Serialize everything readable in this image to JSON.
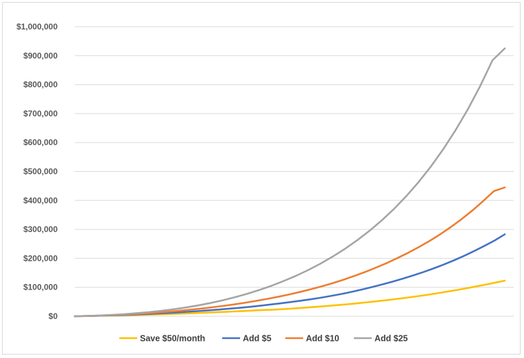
{
  "chart_data": {
    "type": "line",
    "title": "",
    "xlabel": "",
    "ylabel": "",
    "ylim": [
      0,
      1000000
    ],
    "yticks": [
      {
        "value": 0,
        "label": "$0"
      },
      {
        "value": 100000,
        "label": "$100,000"
      },
      {
        "value": 200000,
        "label": "$200,000"
      },
      {
        "value": 300000,
        "label": "$300,000"
      },
      {
        "value": 400000,
        "label": "$400,000"
      },
      {
        "value": 500000,
        "label": "$500,000"
      },
      {
        "value": 600000,
        "label": "$600,000"
      },
      {
        "value": 700000,
        "label": "$700,000"
      },
      {
        "value": 800000,
        "label": "$800,000"
      },
      {
        "value": 900000,
        "label": "$900,000"
      },
      {
        "value": 1000000,
        "label": "$1,000,000"
      }
    ],
    "grid": true,
    "legend_position": "bottom",
    "series": [
      {
        "name": "Save $50/month",
        "color": "#FFC000",
        "values": [
          0,
          600,
          1200,
          1900,
          2600,
          3300,
          4100,
          4900,
          5700,
          6600,
          7600,
          8700,
          9800,
          11000,
          12200,
          13600,
          15000,
          16500,
          18000,
          19600,
          21400,
          22200,
          24000,
          26000,
          28200,
          30500,
          32900,
          35500,
          38200,
          41000,
          44000,
          47200,
          50600,
          54200,
          58000,
          62000,
          66300,
          70800,
          75500,
          80500,
          85800,
          91300,
          97200,
          103300,
          109700,
          116400,
          123000
        ]
      },
      {
        "name": "Add $5",
        "color": "#4472C4",
        "values": [
          0,
          700,
          1500,
          2400,
          3400,
          4600,
          6000,
          7600,
          9300,
          11200,
          13200,
          15400,
          17800,
          20300,
          22900,
          25700,
          28800,
          32200,
          35900,
          39900,
          44100,
          48600,
          53400,
          58400,
          63900,
          70000,
          76700,
          84000,
          92000,
          100500,
          109600,
          119200,
          129500,
          140400,
          152000,
          164500,
          178000,
          192700,
          208300,
          225000,
          242700,
          261500,
          283000
        ]
      },
      {
        "name": "Add $10",
        "color": "#ED7D31",
        "values": [
          0,
          800,
          1800,
          3000,
          4500,
          6300,
          8400,
          10800,
          13500,
          16500,
          19800,
          23400,
          27400,
          31800,
          36600,
          41800,
          47500,
          53800,
          60500,
          67800,
          75700,
          84300,
          93500,
          103500,
          114400,
          126200,
          139000,
          152800,
          167600,
          183500,
          200600,
          219000,
          238800,
          260100,
          283200,
          308500,
          336000,
          365800,
          398000,
          432500,
          445000
        ]
      },
      {
        "name": "Add $25",
        "color": "#A5A5A5",
        "values": [
          0,
          1200,
          2700,
          4700,
          7200,
          10300,
          14000,
          18500,
          23800,
          30000,
          37200,
          45400,
          54700,
          65300,
          77000,
          90200,
          105000,
          121400,
          139500,
          159600,
          181800,
          206200,
          233000,
          262800,
          295500,
          331600,
          371500,
          415600,
          464300,
          518000,
          577400,
          643000,
          715400,
          795500,
          884200,
          925000
        ]
      }
    ]
  }
}
